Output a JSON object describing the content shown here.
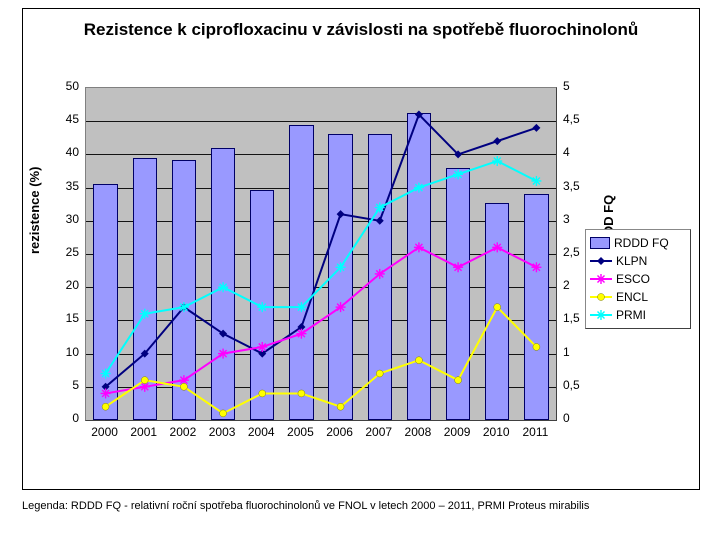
{
  "title": "Rezistence k ciprofloxacinu v závislosti na spotřebě fluorochinolonů",
  "caption": "Legenda: RDDD FQ - relativní roční spotřeba fluorochinolonů ve FNOL v letech 2000 – 2011, PRMI Proteus mirabilis",
  "axis_left_title": "rezistence (%)",
  "axis_right_title": "RDDD FQ",
  "chart": {
    "type": "combo-bar-line",
    "categories": [
      "2000",
      "2001",
      "2002",
      "2003",
      "2004",
      "2005",
      "2006",
      "2007",
      "2008",
      "2009",
      "2010",
      "2011"
    ],
    "y_left": {
      "min": 0,
      "max": 50,
      "step": 5
    },
    "y_right": {
      "min": 0,
      "max": 5,
      "step": 0.5,
      "decimal_comma": true
    },
    "background_color": "#c0c0c0",
    "grid_color": "#000000",
    "bars": {
      "label": "RDDD FQ",
      "axis": "right",
      "values": [
        3.55,
        3.95,
        3.92,
        4.1,
        3.47,
        4.45,
        4.3,
        4.3,
        4.62,
        3.8,
        3.27,
        3.4
      ],
      "fill": "#9999ff",
      "border": "#000066",
      "width_ratio": 0.62
    },
    "line_series": [
      {
        "label": "KLPN",
        "axis": "left",
        "values": [
          5,
          10,
          17,
          13,
          10,
          14,
          31,
          30,
          46,
          40,
          42,
          44
        ],
        "color": "#000080",
        "marker": "diamond"
      },
      {
        "label": "ESCO",
        "axis": "left",
        "values": [
          4,
          5,
          6,
          10,
          11,
          13,
          17,
          22,
          26,
          23,
          26,
          23
        ],
        "color": "#ff00ff",
        "marker": "star"
      },
      {
        "label": "ENCL",
        "axis": "left",
        "values": [
          2,
          6,
          5,
          1,
          4,
          4,
          2,
          7,
          9,
          6,
          17,
          11
        ],
        "color": "#ffff00",
        "marker": "circle"
      },
      {
        "label": "PRMI",
        "axis": "left",
        "values": [
          7,
          16,
          17,
          20,
          17,
          17,
          23,
          32,
          35,
          37,
          39,
          36
        ],
        "color": "#00ffff",
        "marker": "star"
      }
    ]
  },
  "legend_labels": {
    "bar": "RDDD FQ",
    "klpn": "KLPN",
    "esco": "ESCO",
    "encl": "ENCL",
    "prmi": "PRMI"
  }
}
